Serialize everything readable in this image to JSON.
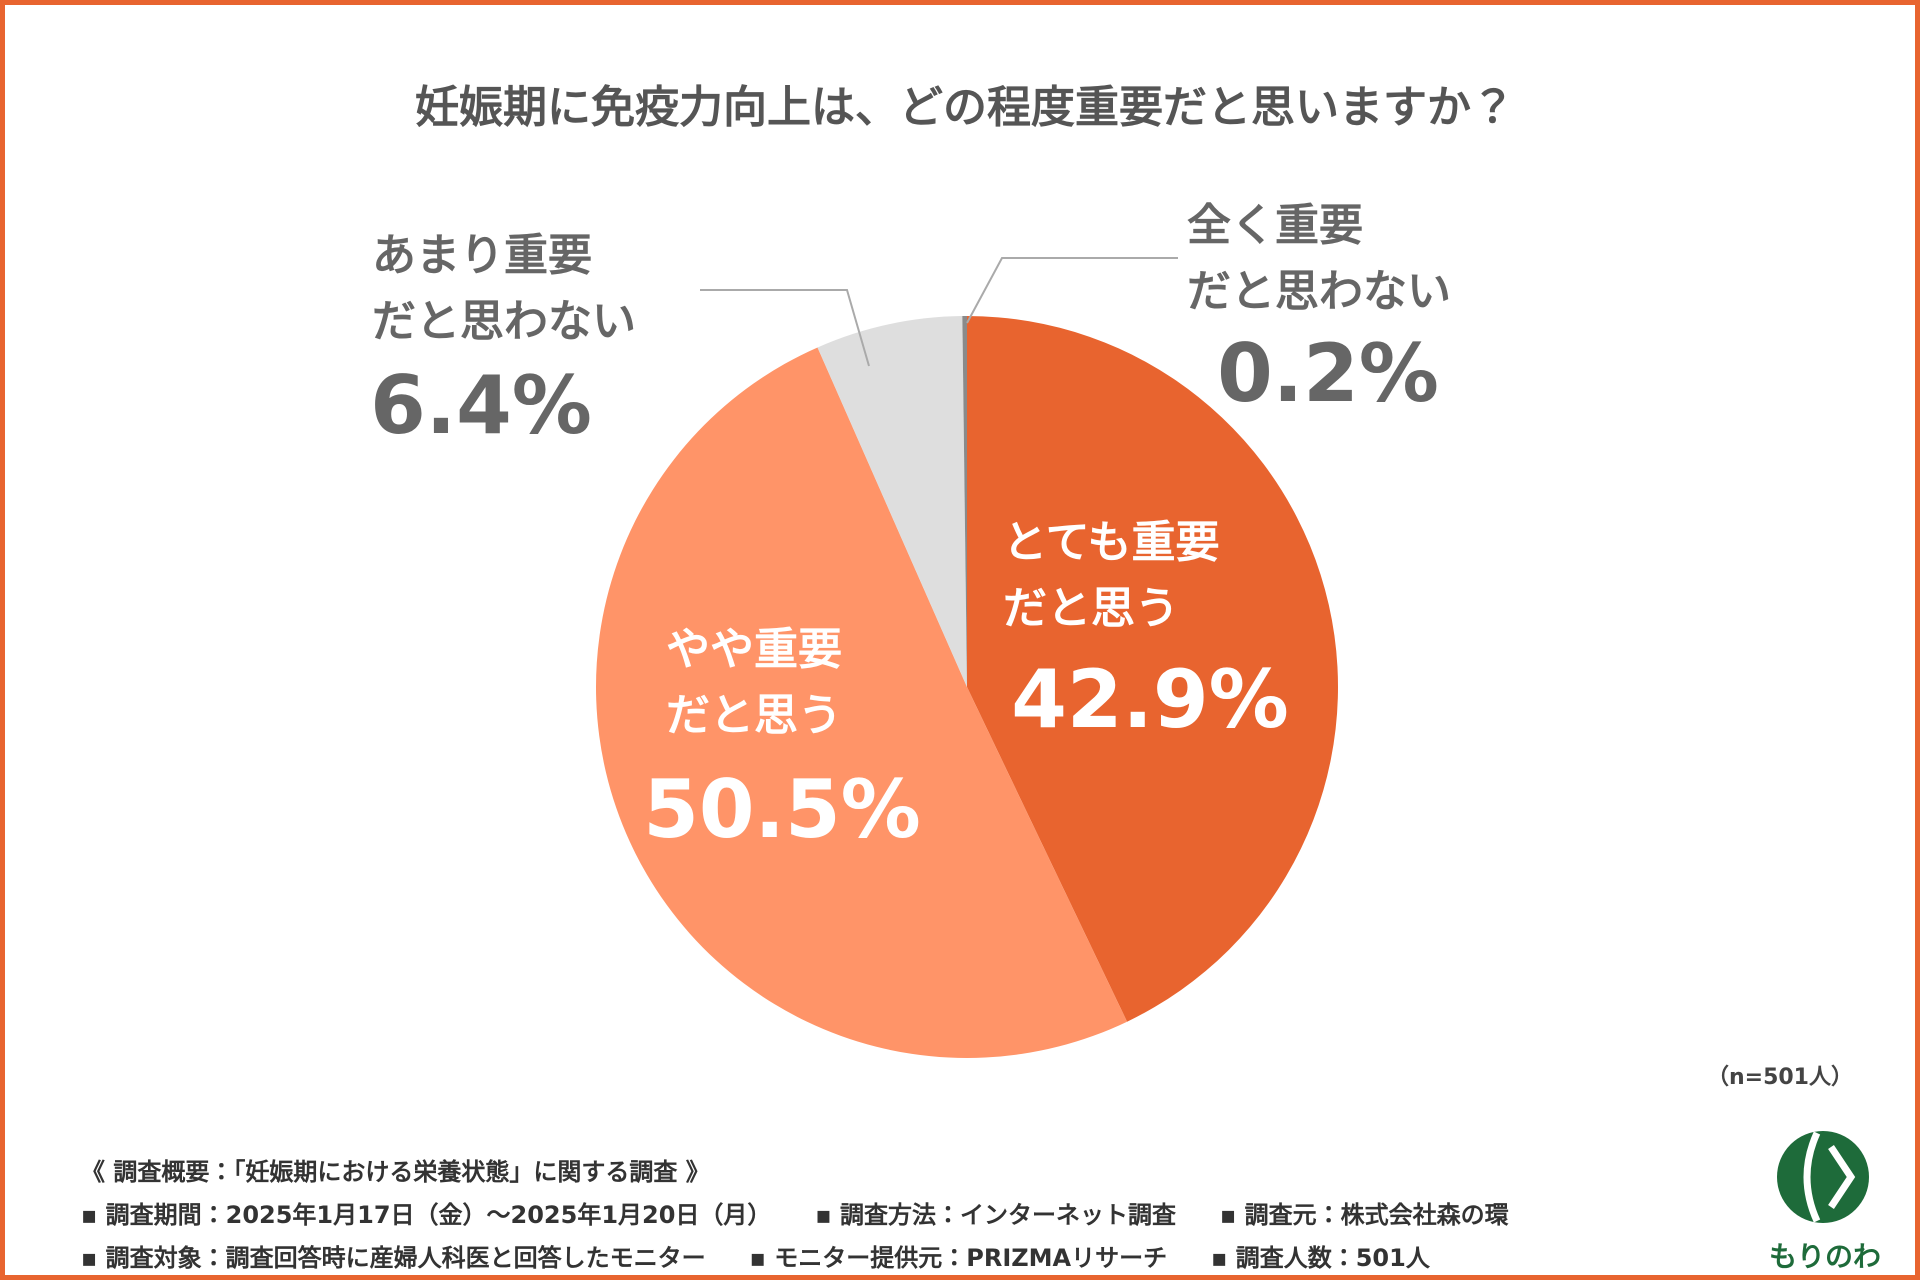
{
  "chart_data": {
    "type": "pie",
    "title": "妊娠期に免疫力向上は、どの程度重要だと思いますか？",
    "categories": [
      "とても重要\nだと思う",
      "やや重要\nだと思う",
      "あまり重要\nだと思わない",
      "全く重要\nだと思わない"
    ],
    "values": [
      42.9,
      50.5,
      6.4,
      0.2
    ],
    "value_labels": [
      "42.9%",
      "50.5%",
      "6.4%",
      "0.2%"
    ],
    "colors": [
      "#E8642F",
      "#FF9468",
      "#DEDEDE",
      "#8A8A8A"
    ],
    "note": "（n=501人）"
  },
  "footer": {
    "heading": "《 調査概要：「妊娠期における栄養状態」に関する調査 》",
    "rows": [
      [
        "調査期間：2025年1月17日（金）～2025年1月20日（月）",
        "調査方法：インターネット調査",
        "調査元：株式会社森の環"
      ],
      [
        "調査対象：調査回答時に産婦人科医と回答したモニター",
        "モニター提供元：PRIZMAリサーチ",
        "調査人数：501人"
      ]
    ]
  },
  "logo": {
    "text": "もりのわ"
  }
}
